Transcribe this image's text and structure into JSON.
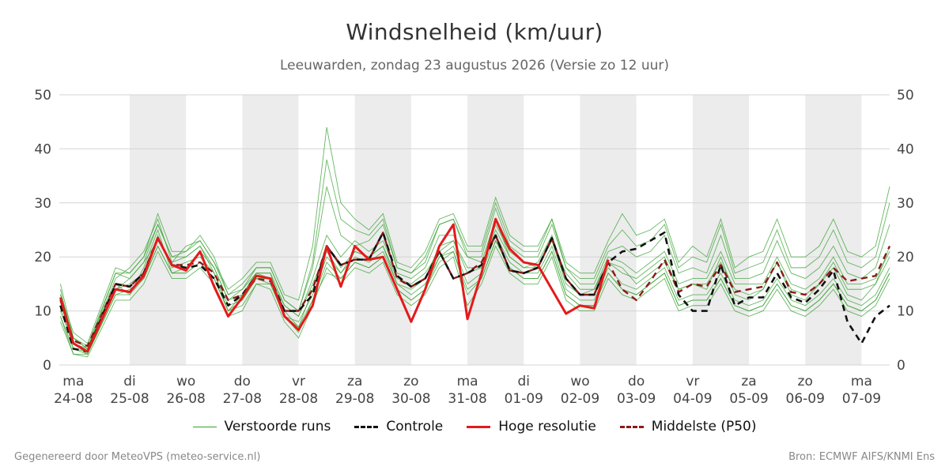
{
  "header": {
    "title": "Windsnelheid (km/uur)",
    "subtitle": "Leeuwarden, zondag 23 augustus 2026 (Versie zo 12 uur)"
  },
  "footer": {
    "left": "Gegenereerd door MeteoVPS (meteo-service.nl)",
    "right": "Bron: ECMWF AIFS/KNMI Ens"
  },
  "legend": [
    {
      "label": "Verstoorde runs",
      "color": "#33a02c",
      "style": "thin-solid"
    },
    {
      "label": "Controle",
      "color": "#111111",
      "style": "dashed"
    },
    {
      "label": "Hoge resolutie",
      "color": "#e31a1c",
      "style": "solid"
    },
    {
      "label": "Middelste (P50)",
      "color": "#8b1a1a",
      "style": "dashed"
    }
  ],
  "chart_data": {
    "type": "line",
    "ylim": [
      0,
      50
    ],
    "yticks": [
      0,
      10,
      20,
      30,
      40,
      50
    ],
    "grid": true,
    "shaded_days": "alternating",
    "x_start_date": "24-08",
    "x_range_days": [
      -0.25,
      14.5
    ],
    "xticks": [
      {
        "day": "ma",
        "date": "24-08"
      },
      {
        "day": "di",
        "date": "25-08"
      },
      {
        "day": "wo",
        "date": "26-08"
      },
      {
        "day": "do",
        "date": "27-08"
      },
      {
        "day": "vr",
        "date": "28-08"
      },
      {
        "day": "za",
        "date": "29-08"
      },
      {
        "day": "zo",
        "date": "30-08"
      },
      {
        "day": "ma",
        "date": "31-08"
      },
      {
        "day": "di",
        "date": "01-09"
      },
      {
        "day": "wo",
        "date": "02-09"
      },
      {
        "day": "do",
        "date": "03-09"
      },
      {
        "day": "vr",
        "date": "04-09"
      },
      {
        "day": "za",
        "date": "05-09"
      },
      {
        "day": "zo",
        "date": "06-09"
      },
      {
        "day": "ma",
        "date": "07-09"
      }
    ],
    "series": [
      {
        "name": "Hoge resolutie",
        "color": "#e31a1c",
        "x": [
          -0.23,
          0,
          0.25,
          0.75,
          1,
          1.25,
          1.5,
          1.75,
          2.0,
          2.25,
          2.5,
          2.75,
          3.0,
          3.25,
          3.5,
          3.75,
          4.0,
          4.25,
          4.5,
          4.75,
          5.0,
          5.25,
          5.5,
          5.75,
          6.0,
          6.25,
          6.5,
          6.75,
          7.0,
          7.25,
          7.5,
          7.75,
          8.0,
          8.25,
          8.5,
          8.75,
          9.0,
          9.25,
          9.5
        ],
        "y": [
          12.5,
          4,
          2.5,
          14,
          13.5,
          16.5,
          23.5,
          18.5,
          17.5,
          21,
          14.5,
          9,
          12.5,
          16.5,
          16,
          9,
          6.5,
          11,
          22,
          14.5,
          22,
          19.5,
          20,
          14,
          8,
          14,
          22,
          26,
          8.5,
          17,
          27,
          21.5,
          19,
          18.5,
          14,
          9.5,
          11,
          10.5,
          19.5
        ]
      },
      {
        "name": "Controle",
        "color": "#111111",
        "x": [
          -0.23,
          0,
          0.25,
          0.75,
          1,
          1.25,
          1.5,
          1.75,
          2.0,
          2.25,
          2.5,
          2.75,
          3.0,
          3.25,
          3.5,
          3.75,
          4.0,
          4.25,
          4.5,
          4.75,
          5.0,
          5.25,
          5.5,
          5.75,
          6.0,
          6.25,
          6.5,
          6.75,
          7.0,
          7.25,
          7.5,
          7.75,
          8.0,
          8.25,
          8.5,
          8.75,
          9.0,
          9.25,
          9.5,
          9.75,
          10.0,
          10.25,
          10.5,
          10.75,
          11.0,
          11.25,
          11.5,
          11.75,
          12.0,
          12.25,
          12.5,
          12.75,
          13.0,
          13.25,
          13.5,
          13.75,
          14.0,
          14.25,
          14.5
        ],
        "y": [
          11,
          3,
          2.5,
          15,
          14.5,
          17,
          23.5,
          18.5,
          18,
          18.5,
          16,
          11,
          13,
          16.5,
          16,
          10,
          10,
          13,
          22,
          18.5,
          19.5,
          19.5,
          24.5,
          16.5,
          14.5,
          16,
          21,
          16,
          17,
          18.5,
          24,
          17.5,
          17,
          18,
          23.5,
          16,
          13,
          13,
          19,
          21,
          21.5,
          23,
          24.5,
          13,
          10,
          10,
          18.5,
          11,
          12.5,
          12.5,
          17,
          12.5,
          11.5,
          14,
          17.5,
          8,
          4,
          9,
          11
        ]
      },
      {
        "name": "Middelste (P50)",
        "color": "#8b1a1a",
        "x": [
          -0.23,
          0,
          0.25,
          0.75,
          1,
          1.25,
          1.5,
          1.75,
          2.0,
          2.25,
          2.5,
          2.75,
          3.0,
          3.25,
          3.5,
          3.75,
          4.0,
          4.25,
          4.5,
          4.75,
          5.0,
          5.25,
          5.5,
          5.75,
          6.0,
          6.25,
          6.5,
          6.75,
          7.0,
          7.25,
          7.5,
          7.75,
          8.0,
          8.25,
          8.5,
          8.75,
          9.0,
          9.25,
          9.5,
          9.75,
          10.0,
          10.25,
          10.5,
          10.75,
          11.0,
          11.25,
          11.5,
          11.75,
          12.0,
          12.25,
          12.5,
          12.75,
          13.0,
          13.25,
          13.5,
          13.75,
          14.0,
          14.25,
          14.5
        ],
        "y": [
          12,
          4.5,
          3.5,
          15,
          14.5,
          17,
          23.5,
          18.5,
          18.5,
          19,
          17,
          12,
          13,
          16,
          15.5,
          10,
          10,
          14,
          22,
          18.5,
          19.5,
          19.5,
          24.5,
          16,
          14.5,
          16,
          21,
          16,
          17,
          19,
          24,
          17.5,
          17,
          18,
          23.5,
          16,
          13,
          13,
          19,
          14,
          12,
          15.5,
          19.5,
          13.5,
          15,
          14.5,
          18.5,
          13.5,
          14,
          14.5,
          19,
          13.5,
          13,
          15,
          18,
          15.5,
          16,
          16.5,
          22
        ]
      }
    ],
    "ensemble_members": [
      {
        "name": "Verstoorde runs",
        "color": "#33a02c",
        "values": [
          [
            15,
            5,
            3,
            17,
            16,
            19,
            26,
            20,
            20,
            22,
            18,
            12,
            14,
            17,
            17,
            11,
            9,
            16,
            24,
            20,
            23,
            21,
            23,
            17,
            16,
            18,
            24,
            24,
            20,
            19,
            27,
            20,
            18,
            19,
            24,
            16,
            13,
            14,
            19,
            18,
            15,
            17,
            19,
            14,
            15,
            14,
            20,
            13,
            12,
            14,
            19,
            13,
            12,
            15,
            18,
            13,
            12,
            15,
            22
          ],
          [
            9,
            3,
            2,
            13,
            14,
            16,
            22,
            17,
            17,
            19,
            16,
            10,
            12,
            16,
            15,
            9,
            8,
            13,
            20,
            17,
            20,
            19,
            21,
            15,
            13,
            15,
            20,
            22,
            15,
            17,
            24,
            19,
            17,
            17,
            22,
            14,
            12,
            12,
            18,
            15,
            14,
            16,
            18,
            12,
            13,
            13,
            17,
            12,
            11,
            12,
            16,
            12,
            11,
            13,
            16,
            12,
            11,
            13,
            18
          ],
          [
            13,
            6,
            4,
            18,
            17,
            20,
            28,
            21,
            21,
            24,
            20,
            13,
            15,
            18,
            18,
            12,
            10,
            18,
            33,
            24,
            22,
            23,
            26,
            18,
            17,
            19,
            26,
            27,
            20,
            20,
            29,
            22,
            20,
            20,
            26,
            18,
            15,
            15,
            21,
            22,
            20,
            21,
            24,
            17,
            18,
            17,
            24,
            16,
            16,
            17,
            23,
            17,
            16,
            18,
            22,
            17,
            16,
            18,
            26
          ],
          [
            8,
            2,
            1.5,
            12,
            12,
            15,
            21,
            16,
            16,
            18,
            15,
            9,
            10,
            15,
            14,
            8,
            5,
            11,
            18,
            15,
            18,
            17,
            19,
            13,
            11,
            13,
            18,
            20,
            11,
            15,
            22,
            17,
            15,
            15,
            20,
            12,
            10,
            10,
            16,
            13,
            12,
            14,
            16,
            10,
            11,
            11,
            15,
            10,
            9,
            10,
            14,
            10,
            9,
            11,
            14,
            10,
            9,
            11,
            16
          ],
          [
            14,
            4,
            3,
            16,
            18,
            21,
            27,
            19,
            22,
            23,
            19,
            14,
            16,
            19,
            19,
            13,
            12,
            22,
            44,
            30,
            27,
            25,
            28,
            19,
            18,
            21,
            27,
            28,
            22,
            22,
            31,
            24,
            22,
            22,
            27,
            19,
            17,
            17,
            23,
            28,
            24,
            25,
            27,
            19,
            22,
            20,
            27,
            18,
            20,
            21,
            27,
            20,
            20,
            22,
            27,
            21,
            20,
            22,
            33
          ],
          [
            10,
            4,
            2,
            14,
            15,
            17,
            24,
            18,
            19,
            20,
            17,
            11,
            12,
            16,
            16,
            10,
            7,
            14,
            22,
            18,
            21,
            20,
            22,
            15,
            14,
            16,
            22,
            23,
            17,
            18,
            25,
            20,
            18,
            18,
            23,
            15,
            13,
            13,
            19,
            17,
            16,
            18,
            20,
            14,
            15,
            15,
            19,
            14,
            13,
            14,
            19,
            14,
            13,
            15,
            19,
            14,
            14,
            15,
            20
          ],
          [
            12,
            5,
            3,
            15,
            13,
            18,
            25,
            17,
            18,
            21,
            18,
            12,
            13,
            17,
            16,
            11,
            9,
            15,
            21,
            17,
            21,
            20,
            22,
            16,
            15,
            17,
            21,
            23,
            18,
            18,
            26,
            21,
            19,
            18,
            23,
            17,
            14,
            14,
            20,
            19,
            17,
            19,
            21,
            15,
            16,
            16,
            21,
            15,
            15,
            15,
            20,
            15,
            14,
            16,
            20,
            15,
            15,
            16,
            21
          ],
          [
            11,
            3,
            2.5,
            14,
            16,
            19,
            23,
            19,
            20,
            22,
            17,
            10,
            13,
            17,
            17,
            9,
            6,
            12,
            17,
            16,
            19,
            18,
            20,
            14,
            12,
            14,
            19,
            21,
            14,
            16,
            23,
            18,
            16,
            16,
            21,
            13,
            11,
            11,
            17,
            14,
            13,
            15,
            17,
            11,
            12,
            12,
            16,
            11,
            10,
            11,
            15,
            11,
            10,
            12,
            15,
            11,
            10,
            12,
            17
          ],
          [
            13,
            5,
            3.5,
            17,
            17,
            20,
            26,
            20,
            21,
            23,
            19,
            13,
            14,
            18,
            18,
            12,
            10,
            19,
            38,
            27,
            25,
            24,
            27,
            18,
            17,
            20,
            26,
            27,
            21,
            21,
            30,
            23,
            21,
            21,
            27,
            18,
            16,
            16,
            22,
            25,
            22,
            23,
            26,
            18,
            20,
            19,
            26,
            17,
            18,
            19,
            25,
            18,
            18,
            20,
            25,
            19,
            18,
            20,
            30
          ],
          [
            9,
            2,
            2,
            13,
            13,
            16,
            22,
            17,
            17,
            19,
            16,
            10,
            11,
            15,
            15,
            9,
            7,
            12,
            19,
            16,
            19,
            18,
            20,
            14,
            12,
            14,
            20,
            21,
            13,
            16,
            23,
            18,
            16,
            16,
            21,
            13,
            11,
            11,
            17,
            14,
            13,
            15,
            17,
            11,
            12,
            12,
            16,
            11,
            10,
            11,
            15,
            11,
            10,
            12,
            15,
            11,
            10,
            12,
            17
          ]
        ]
      }
    ]
  }
}
